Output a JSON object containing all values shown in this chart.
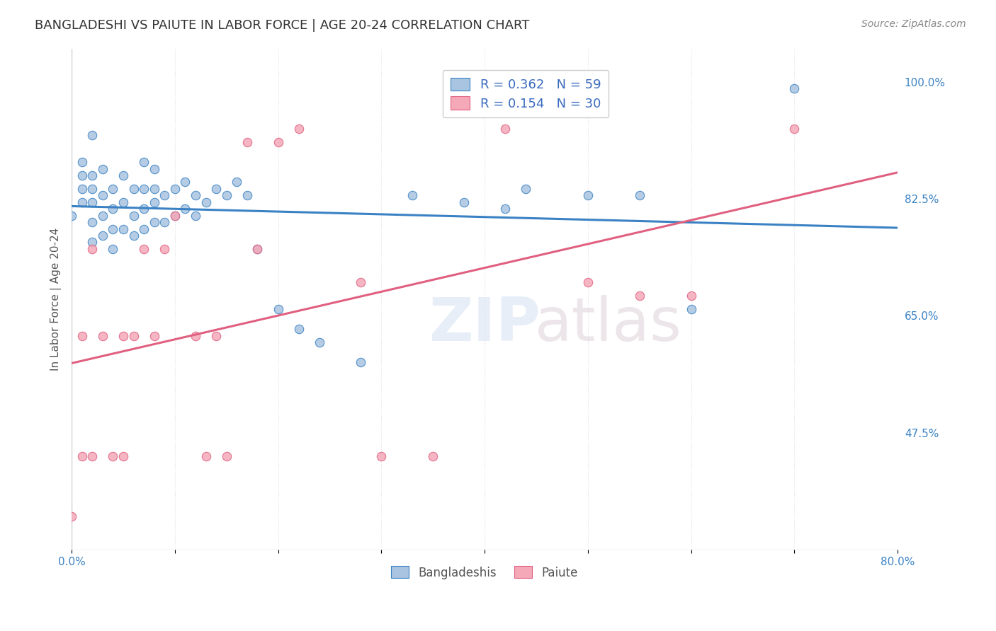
{
  "title": "BANGLADESHI VS PAIUTE IN LABOR FORCE | AGE 20-24 CORRELATION CHART",
  "source": "Source: ZipAtlas.com",
  "xlabel": "",
  "ylabel": "In Labor Force | Age 20-24",
  "xlim": [
    0.0,
    0.8
  ],
  "ylim": [
    0.3,
    1.05
  ],
  "xticks": [
    0.0,
    0.1,
    0.2,
    0.3,
    0.4,
    0.5,
    0.6,
    0.7,
    0.8
  ],
  "xticklabels": [
    "0.0%",
    "",
    "",
    "",
    "",
    "",
    "",
    "",
    "80.0%"
  ],
  "yticks_right": [
    0.475,
    0.65,
    0.825,
    1.0
  ],
  "yticklabels_right": [
    "47.5%",
    "65.0%",
    "82.5%",
    "100.0%"
  ],
  "bangladeshi_R": "0.362",
  "bangladeshi_N": "59",
  "paiute_R": "0.154",
  "paiute_N": "30",
  "bangladeshi_color": "#a8c4e0",
  "paiute_color": "#f4a8b8",
  "bangladeshi_line_color": "#3b82c4",
  "paiute_line_color": "#e06080",
  "legend_text_color": "#3b6bbf",
  "watermark": "ZIPatlas",
  "bangladeshi_x": [
    0.0,
    0.01,
    0.01,
    0.01,
    0.01,
    0.02,
    0.02,
    0.02,
    0.02,
    0.02,
    0.02,
    0.03,
    0.03,
    0.03,
    0.03,
    0.04,
    0.04,
    0.04,
    0.04,
    0.05,
    0.05,
    0.05,
    0.06,
    0.06,
    0.06,
    0.07,
    0.07,
    0.07,
    0.07,
    0.08,
    0.08,
    0.08,
    0.08,
    0.09,
    0.09,
    0.1,
    0.1,
    0.11,
    0.11,
    0.12,
    0.12,
    0.13,
    0.14,
    0.15,
    0.16,
    0.17,
    0.18,
    0.2,
    0.22,
    0.24,
    0.28,
    0.33,
    0.38,
    0.42,
    0.44,
    0.5,
    0.55,
    0.6,
    0.7
  ],
  "bangladeshi_y": [
    0.8,
    0.82,
    0.84,
    0.86,
    0.88,
    0.76,
    0.79,
    0.82,
    0.84,
    0.86,
    0.92,
    0.77,
    0.8,
    0.83,
    0.87,
    0.75,
    0.78,
    0.81,
    0.84,
    0.78,
    0.82,
    0.86,
    0.77,
    0.8,
    0.84,
    0.78,
    0.81,
    0.84,
    0.88,
    0.79,
    0.82,
    0.84,
    0.87,
    0.79,
    0.83,
    0.8,
    0.84,
    0.81,
    0.85,
    0.8,
    0.83,
    0.82,
    0.84,
    0.83,
    0.85,
    0.83,
    0.75,
    0.66,
    0.63,
    0.61,
    0.58,
    0.83,
    0.82,
    0.81,
    0.84,
    0.83,
    0.83,
    0.66,
    0.99
  ],
  "paiute_x": [
    0.0,
    0.01,
    0.01,
    0.02,
    0.02,
    0.03,
    0.04,
    0.05,
    0.05,
    0.06,
    0.07,
    0.08,
    0.09,
    0.1,
    0.12,
    0.13,
    0.14,
    0.15,
    0.17,
    0.18,
    0.2,
    0.22,
    0.28,
    0.3,
    0.35,
    0.42,
    0.5,
    0.55,
    0.6,
    0.7
  ],
  "paiute_y": [
    0.35,
    0.44,
    0.62,
    0.44,
    0.75,
    0.62,
    0.44,
    0.44,
    0.62,
    0.62,
    0.75,
    0.62,
    0.75,
    0.8,
    0.62,
    0.44,
    0.62,
    0.44,
    0.91,
    0.75,
    0.91,
    0.93,
    0.7,
    0.44,
    0.44,
    0.93,
    0.7,
    0.68,
    0.68,
    0.93
  ],
  "background_color": "#ffffff",
  "grid_color": "#e0e0e0"
}
